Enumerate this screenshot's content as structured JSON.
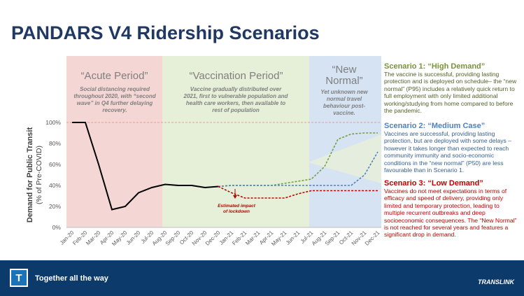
{
  "chart_data": {
    "type": "line",
    "title": "PANDARS V4 Ridership Scenarios",
    "y_label": "Demand for Public Transit",
    "y_sublabel": "(% of Pre-COVID)",
    "categories": [
      "Jan-20",
      "Feb-20",
      "Mar-20",
      "Apr-20",
      "May-20",
      "Jun-20",
      "Jul-20",
      "Aug-20",
      "Sep-20",
      "Oct-20",
      "Nov-20",
      "Dec-20",
      "Jan-21",
      "Feb-21",
      "Mar-21",
      "Apr-21",
      "May-21",
      "Jun-21",
      "Jul-21",
      "Aug-21",
      "Sep-21",
      "Oct-21",
      "Nov-21",
      "Dec-21"
    ],
    "series": [
      {
        "color": "#000000",
        "dashed": false,
        "values": [
          100,
          100,
          60,
          17,
          20,
          33,
          38,
          41,
          40,
          40,
          38,
          39,
          null,
          null,
          null,
          null,
          null,
          null,
          null,
          null,
          null,
          null,
          null,
          null
        ]
      },
      {
        "color": "#77a043",
        "dashed": true,
        "values": [
          null,
          null,
          null,
          null,
          null,
          null,
          null,
          null,
          null,
          null,
          null,
          39,
          40,
          40,
          40,
          40,
          42,
          44,
          46,
          58,
          84,
          89,
          90,
          90
        ]
      },
      {
        "color": "#4f81bd",
        "dashed": true,
        "values": [
          null,
          null,
          null,
          null,
          null,
          null,
          null,
          null,
          null,
          null,
          null,
          39,
          40,
          40,
          40,
          40,
          40,
          40,
          40,
          40,
          40,
          40,
          50,
          72
        ]
      },
      {
        "color": "#c00000",
        "dashed": true,
        "values": [
          null,
          null,
          null,
          null,
          null,
          null,
          null,
          null,
          null,
          null,
          null,
          39,
          33,
          28,
          28,
          28,
          28,
          32,
          35,
          35,
          35,
          35,
          35,
          35
        ]
      }
    ],
    "ylim": [
      0,
      110
    ],
    "yticks": [
      {
        "value": 0,
        "label": "0%"
      },
      {
        "value": 20,
        "label": "20%"
      },
      {
        "value": 40,
        "label": "40%"
      },
      {
        "value": 60,
        "label": "60%"
      },
      {
        "value": 80,
        "label": "80%"
      },
      {
        "value": 100,
        "label": "100%"
      }
    ],
    "reference_line": 100,
    "periods": [
      {
        "title": "“Acute Period”",
        "text": "Social distancing required throughout 2020, with “second wave” in Q4 further delaying recovery."
      },
      {
        "title": "“Vaccination Period”",
        "text": "Vaccine gradually distributed over 2021, first to vulnerable population and health care workers, then available to rest of population"
      },
      {
        "title": "“New Normal”",
        "text": "Yet unknown new normal travel behaviour post-vaccine."
      }
    ],
    "annotation": "Estimated impact of lockdown",
    "scenarios": [
      {
        "title": "Scenario 1: “High Demand”",
        "text": "The vaccine is successful, providing lasting protection and is deployed on schedule– the “new normal” (P95) includes a relatively quick return to full employment with only limited additional working/studying from home compared to before the pandemic."
      },
      {
        "title": "Scenario 2: “Medium Case”",
        "text": "Vaccines are successful, providing lasting protection, but are deployed with some delays – however it takes longer than expected to reach community immunity and socio-economic conditions in the “new normal” (P50) are less favourable than in Scenario 1."
      },
      {
        "title": "Scenario 3: “Low Demand”",
        "text": "Vaccines do not meet expectations in terms of efficacy and speed of delivery, providing only limited and temporary protection, leading to multiple recurrent outbreaks and deep socioeconomic consequences. The “New Normal” is not reached for several years and features a significant drop in demand."
      }
    ]
  },
  "footer": {
    "logo_letter": "T",
    "tagline": "Together all the way",
    "brand": "TRANSLINK"
  }
}
